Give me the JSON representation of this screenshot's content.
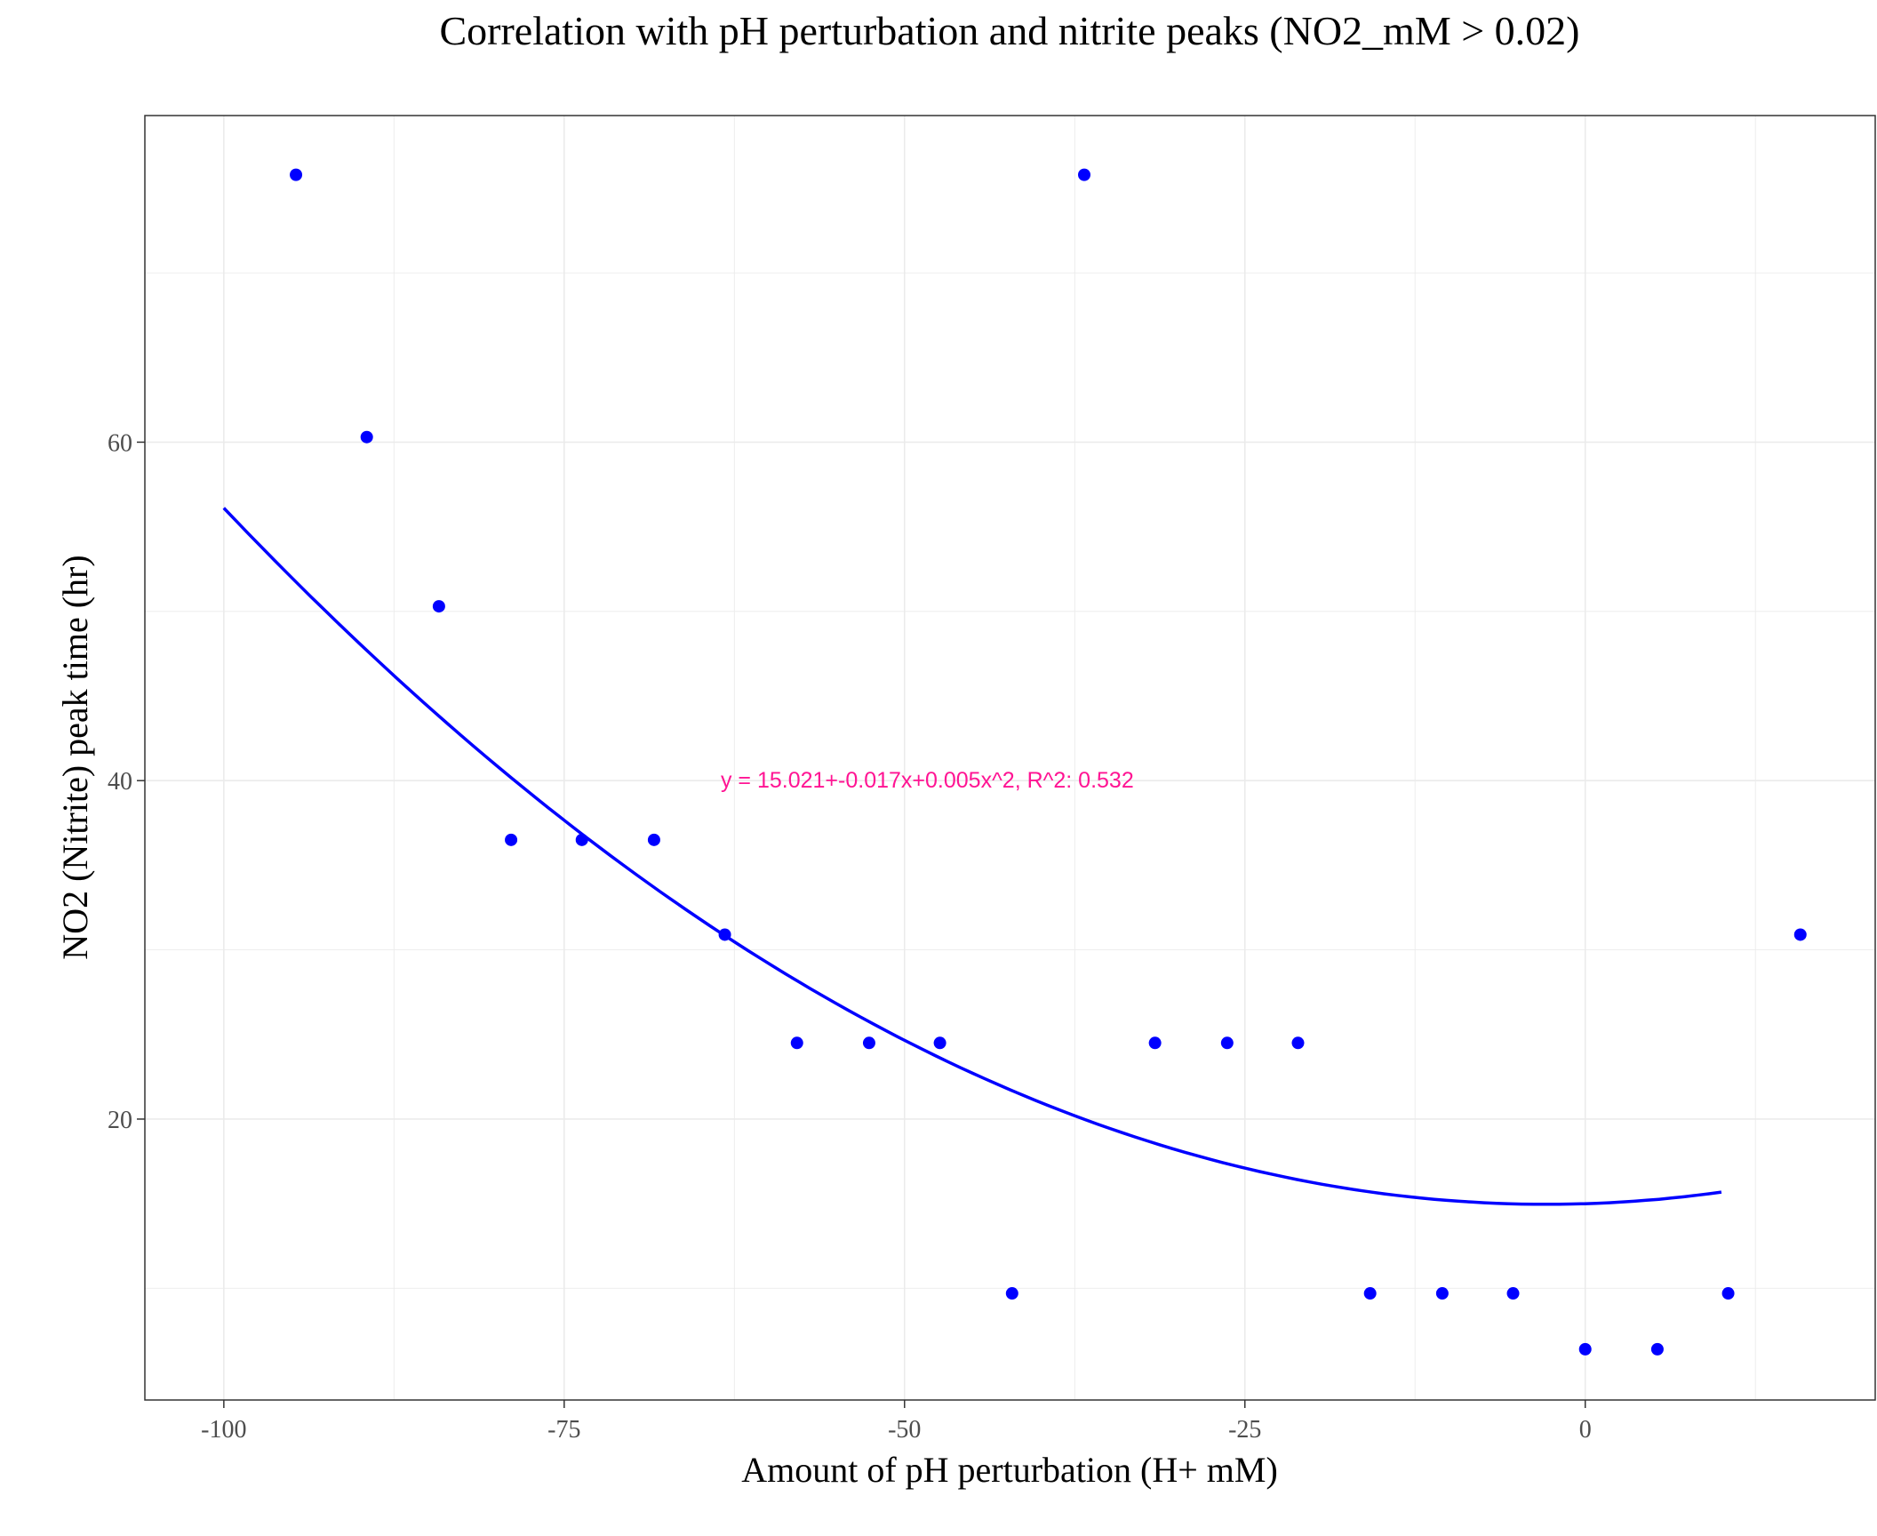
{
  "chart_data": {
    "type": "scatter",
    "title": "Correlation with pH perturbation and nitrite peaks (NO2_mM > 0.02)",
    "xlabel": "Amount of pH perturbation (H+ mM)",
    "ylabel": "NO2 (Nitrite) peak time (hr)",
    "xlim": [
      -105.8,
      21.3
    ],
    "ylim": [
      3.4,
      79.3
    ],
    "x_ticks": [
      -100,
      -75,
      -50,
      -25,
      0
    ],
    "x_tick_labels": [
      "-100",
      "-75",
      "-50",
      "-25",
      "0"
    ],
    "y_ticks": [
      20,
      40,
      60
    ],
    "y_tick_labels": [
      "20",
      "40",
      "60"
    ],
    "grid": true,
    "legend": "none",
    "points": {
      "color": "#0000ff",
      "x": [
        -94.7,
        -89.5,
        -84.2,
        -78.9,
        -73.7,
        -68.4,
        -63.2,
        -57.9,
        -52.6,
        -47.4,
        -42.1,
        -36.8,
        -31.6,
        -26.3,
        -21.1,
        -15.8,
        -10.5,
        -5.3,
        0,
        5.3,
        10.5,
        15.8
      ],
      "y": [
        75.8,
        60.3,
        50.3,
        36.5,
        36.5,
        36.5,
        30.9,
        24.5,
        24.5,
        24.5,
        9.7,
        75.8,
        24.5,
        24.5,
        24.5,
        9.7,
        9.7,
        9.7,
        6.4,
        6.4,
        9.7,
        30.9
      ]
    },
    "fit": {
      "type": "quadratic",
      "color": "#0000ff",
      "coefficients": [
        15.021,
        -0.017,
        0.005
      ],
      "x_range": [
        -100,
        10
      ]
    },
    "annotation": {
      "text": "y = 15.021+-0.017x+0.005x^2,  R^2: 0.532",
      "color": "#ff1493",
      "x": -63.5,
      "y": 40
    }
  }
}
